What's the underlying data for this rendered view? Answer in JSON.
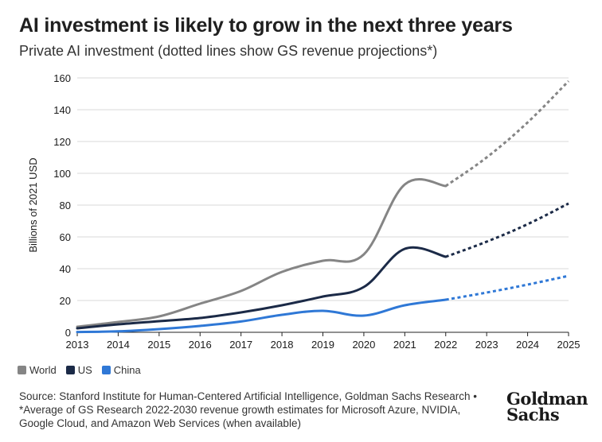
{
  "header": {
    "title": "AI investment is likely to grow in the next three years",
    "subtitle": "Private AI investment (dotted lines show GS revenue projections*)"
  },
  "chart_data": {
    "type": "line",
    "title": "AI investment is likely to grow in the next three years",
    "subtitle": "Private AI investment (dotted lines show GS revenue projections*)",
    "xlabel": "",
    "ylabel": "Billions of 2021 USD",
    "x": [
      2013,
      2014,
      2015,
      2016,
      2017,
      2018,
      2019,
      2020,
      2021,
      2022,
      2023,
      2024,
      2025
    ],
    "ylim": [
      0,
      160
    ],
    "yticks": [
      0,
      20,
      40,
      60,
      80,
      100,
      120,
      140,
      160
    ],
    "grid": "horizontal",
    "legend_position": "bottom-left",
    "projection_start": 2022,
    "series": [
      {
        "name": "World",
        "color": "#858585",
        "actual": [
          [
            2013,
            3.5
          ],
          [
            2014,
            6.5
          ],
          [
            2015,
            10
          ],
          [
            2016,
            18
          ],
          [
            2017,
            26
          ],
          [
            2018,
            38
          ],
          [
            2019,
            45
          ],
          [
            2020,
            49
          ],
          [
            2021,
            93
          ],
          [
            2022,
            92
          ]
        ],
        "projected": [
          [
            2022,
            92
          ],
          [
            2023,
            110
          ],
          [
            2024,
            132
          ],
          [
            2025,
            158
          ]
        ]
      },
      {
        "name": "US",
        "color": "#1b2a47",
        "actual": [
          [
            2013,
            2.5
          ],
          [
            2014,
            5
          ],
          [
            2015,
            7
          ],
          [
            2016,
            9
          ],
          [
            2017,
            12.5
          ],
          [
            2018,
            17
          ],
          [
            2019,
            22.5
          ],
          [
            2020,
            28.5
          ],
          [
            2021,
            52.5
          ],
          [
            2022,
            47.5
          ]
        ],
        "projected": [
          [
            2022,
            47.5
          ],
          [
            2023,
            57
          ],
          [
            2024,
            68
          ],
          [
            2025,
            81
          ]
        ]
      },
      {
        "name": "China",
        "color": "#2f78d6",
        "actual": [
          [
            2013,
            0.2
          ],
          [
            2014,
            0.6
          ],
          [
            2015,
            2
          ],
          [
            2016,
            4
          ],
          [
            2017,
            6.8
          ],
          [
            2018,
            11
          ],
          [
            2019,
            13.5
          ],
          [
            2020,
            10.5
          ],
          [
            2021,
            17
          ],
          [
            2022,
            20.5
          ]
        ],
        "projected": [
          [
            2022,
            20.5
          ],
          [
            2023,
            25
          ],
          [
            2024,
            30
          ],
          [
            2025,
            35.5
          ]
        ]
      }
    ]
  },
  "legend": {
    "items": [
      {
        "label": "World",
        "color": "#858585"
      },
      {
        "label": "US",
        "color": "#1b2a47"
      },
      {
        "label": "China",
        "color": "#2f78d6"
      }
    ]
  },
  "footer": {
    "source": "Source: Stanford Institute for Human-Centered Artificial Intelligence, Goldman Sachs Research • *Average of GS Research 2022-2030 revenue growth estimates for Microsoft Azure, NVIDIA, Google Cloud, and Amazon Web Services (when available)",
    "logo_line1": "Goldman",
    "logo_line2": "Sachs"
  }
}
